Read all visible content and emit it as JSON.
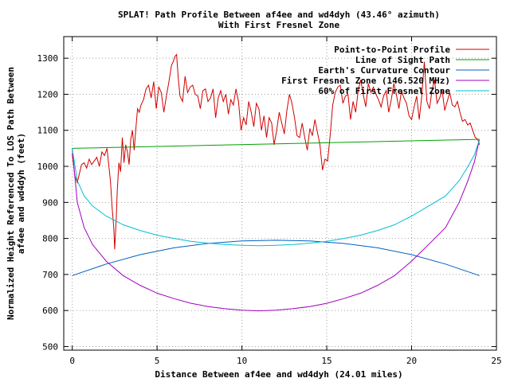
{
  "chart_data": {
    "type": "line",
    "title": "SPLAT! Path Profile Between af4ee and wd4dyh (43.46° azimuth)",
    "subtitle": "With First Fresnel Zone",
    "xlabel": "Distance Between af4ee and wd4dyh (24.01 miles)",
    "ylabel_line1": "Normalized Height Referenced To LOS Path Between",
    "ylabel_line2": "af4ee and wd4dyh (feet)",
    "xlim": [
      -0.5,
      25
    ],
    "ylim": [
      490,
      1360
    ],
    "xticks": [
      0,
      5,
      10,
      15,
      20,
      25
    ],
    "yticks": [
      500,
      600,
      700,
      800,
      900,
      1000,
      1100,
      1200,
      1300
    ],
    "grid": true,
    "legend_position": "top-right",
    "series": [
      {
        "name": "Point-to-Point Profile",
        "color": "#d00000",
        "x": [
          0,
          0.15,
          0.3,
          0.45,
          0.55,
          0.7,
          0.85,
          1.0,
          1.15,
          1.3,
          1.45,
          1.6,
          1.75,
          1.9,
          2.05,
          2.15,
          2.25,
          2.35,
          2.45,
          2.5,
          2.6,
          2.65,
          2.75,
          2.85,
          2.95,
          3.05,
          3.15,
          3.25,
          3.35,
          3.45,
          3.55,
          3.65,
          3.75,
          3.85,
          3.95,
          4.05,
          4.2,
          4.35,
          4.5,
          4.65,
          4.8,
          4.95,
          5.1,
          5.25,
          5.4,
          5.55,
          5.7,
          5.85,
          5.95,
          6.05,
          6.15,
          6.25,
          6.35,
          6.5,
          6.65,
          6.8,
          6.95,
          7.1,
          7.25,
          7.4,
          7.55,
          7.7,
          7.85,
          8.0,
          8.15,
          8.3,
          8.45,
          8.6,
          8.75,
          8.9,
          9.05,
          9.2,
          9.35,
          9.5,
          9.65,
          9.8,
          9.95,
          10.1,
          10.25,
          10.4,
          10.55,
          10.7,
          10.85,
          11.0,
          11.15,
          11.3,
          11.45,
          11.6,
          11.75,
          11.9,
          12.05,
          12.2,
          12.35,
          12.5,
          12.65,
          12.8,
          12.95,
          13.1,
          13.25,
          13.4,
          13.55,
          13.7,
          13.85,
          14.0,
          14.15,
          14.3,
          14.45,
          14.6,
          14.75,
          14.9,
          15.05,
          15.2,
          15.35,
          15.5,
          15.65,
          15.8,
          15.95,
          16.1,
          16.25,
          16.4,
          16.55,
          16.7,
          16.85,
          17.0,
          17.15,
          17.3,
          17.45,
          17.6,
          17.75,
          17.9,
          18.05,
          18.2,
          18.35,
          18.5,
          18.65,
          18.8,
          18.95,
          19.1,
          19.25,
          19.4,
          19.55,
          19.7,
          19.85,
          20.0,
          20.15,
          20.3,
          20.45,
          20.6,
          20.75,
          20.9,
          21.05,
          21.2,
          21.35,
          21.5,
          21.65,
          21.8,
          21.95,
          22.1,
          22.25,
          22.4,
          22.55,
          22.7,
          22.85,
          23.0,
          23.15,
          23.3,
          23.45,
          23.6,
          23.75,
          23.9,
          24.0
        ],
        "y": [
          1035,
          975,
          955,
          985,
          1005,
          1010,
          995,
          1020,
          1005,
          1015,
          1025,
          1000,
          1040,
          1030,
          1050,
          1005,
          960,
          885,
          830,
          770,
          860,
          930,
          1010,
          985,
          1080,
          1010,
          1060,
          1040,
          1005,
          1075,
          1100,
          1045,
          1105,
          1160,
          1150,
          1170,
          1185,
          1215,
          1225,
          1190,
          1235,
          1160,
          1220,
          1205,
          1150,
          1195,
          1235,
          1280,
          1290,
          1305,
          1310,
          1245,
          1195,
          1180,
          1250,
          1205,
          1220,
          1225,
          1200,
          1195,
          1160,
          1210,
          1215,
          1180,
          1190,
          1215,
          1135,
          1190,
          1210,
          1180,
          1200,
          1145,
          1185,
          1170,
          1215,
          1180,
          1100,
          1135,
          1115,
          1180,
          1150,
          1110,
          1175,
          1160,
          1100,
          1140,
          1080,
          1135,
          1120,
          1060,
          1100,
          1150,
          1120,
          1090,
          1155,
          1200,
          1175,
          1135,
          1085,
          1080,
          1120,
          1080,
          1045,
          1105,
          1085,
          1130,
          1095,
          1060,
          990,
          1020,
          1015,
          1085,
          1170,
          1205,
          1220,
          1225,
          1175,
          1195,
          1200,
          1130,
          1180,
          1150,
          1210,
          1240,
          1200,
          1165,
          1230,
          1205,
          1220,
          1200,
          1185,
          1165,
          1195,
          1210,
          1150,
          1185,
          1230,
          1200,
          1160,
          1210,
          1190,
          1175,
          1140,
          1130,
          1165,
          1195,
          1130,
          1195,
          1290,
          1180,
          1160,
          1210,
          1240,
          1175,
          1190,
          1210,
          1155,
          1180,
          1205,
          1170,
          1165,
          1180,
          1150,
          1125,
          1130,
          1115,
          1120,
          1100,
          1080,
          1075,
          1060
        ]
      },
      {
        "name": "Line of Sight Path",
        "color": "#00a000",
        "x": [
          0,
          24
        ],
        "y": [
          1050,
          1075
        ]
      },
      {
        "name": "Earth's Curvature Contour",
        "color": "#0060c0",
        "x": [
          0,
          2,
          4,
          6,
          8,
          10,
          12,
          14,
          16,
          18,
          20,
          22,
          24
        ],
        "y": [
          697,
          729,
          755,
          774,
          786,
          793,
          795,
          793,
          786,
          774,
          755,
          729,
          697
        ]
      },
      {
        "name": "First Fresnel Zone (146.520 MHz)",
        "color": "#a000c0",
        "x": [
          0,
          0.3,
          0.7,
          1.2,
          2,
          3,
          4,
          5,
          6,
          7,
          8,
          9,
          10,
          11,
          12,
          13,
          14,
          15,
          16,
          17,
          18,
          19,
          20,
          21,
          22,
          22.8,
          23.3,
          23.7,
          24
        ],
        "y": [
          1050,
          900,
          830,
          783,
          737,
          697,
          670,
          648,
          633,
          620,
          611,
          605,
          601,
          599,
          601,
          605,
          611,
          620,
          633,
          648,
          670,
          697,
          737,
          783,
          830,
          900,
          958,
          1012,
          1075
        ]
      },
      {
        "name": "60% of First Fresnel Zone",
        "color": "#00c0d0",
        "x": [
          0,
          0.3,
          0.7,
          1.2,
          2,
          3,
          4,
          5,
          6,
          7,
          8,
          9,
          10,
          11,
          12,
          13,
          14,
          15,
          16,
          17,
          18,
          19,
          20,
          21,
          22,
          22.8,
          23.3,
          23.7,
          24
        ],
        "y": [
          1050,
          960,
          918,
          890,
          862,
          838,
          822,
          809,
          800,
          792,
          787,
          783,
          781,
          780,
          781,
          783,
          787,
          792,
          800,
          809,
          822,
          838,
          862,
          890,
          918,
          960,
          998,
          1032,
          1075
        ]
      }
    ]
  }
}
